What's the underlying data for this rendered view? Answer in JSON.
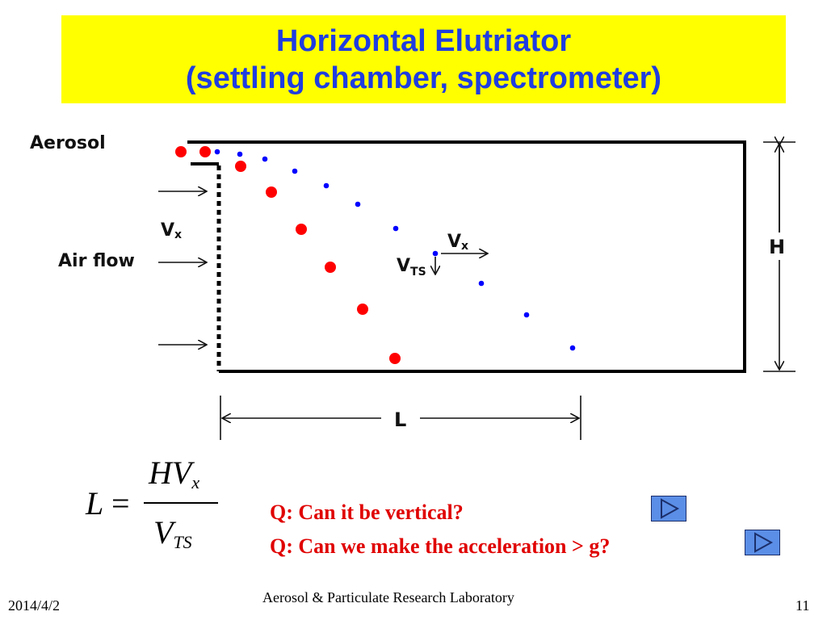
{
  "slide": {
    "title_line1": "Horizontal Elutriator",
    "title_line2": "(settling chamber, spectrometer)",
    "colors": {
      "title_bg": "#ffff00",
      "title_text": "#1f3de0",
      "question_text": "#e00000",
      "large_particle": "#ff0000",
      "small_particle": "#0000ff"
    }
  },
  "diagram": {
    "aerosol_label": "Aerosol",
    "vx_left_label": "V",
    "vx_left_sub": "x",
    "airflow_label": "Air flow",
    "vx_mid_label": "V",
    "vx_mid_sub": "x",
    "vts_label": "V",
    "vts_sub": "TS",
    "height_label": "H",
    "length_label": "L"
  },
  "formula": {
    "lhs": "L",
    "equals": "=",
    "numerator": "HV",
    "numerator_sub": "x",
    "denominator": "V",
    "denominator_sub": "TS"
  },
  "questions": [
    {
      "text": "Q: Can it be vertical?"
    },
    {
      "text": "Q: Can we make the acceleration > g?"
    }
  ],
  "nav_buttons": [
    {
      "icon": "play-triangle-icon"
    },
    {
      "icon": "play-triangle-icon"
    }
  ],
  "footer": {
    "date": "2014/4/2",
    "lab": "Aerosol & Particulate Research Laboratory",
    "page_number": "11"
  }
}
